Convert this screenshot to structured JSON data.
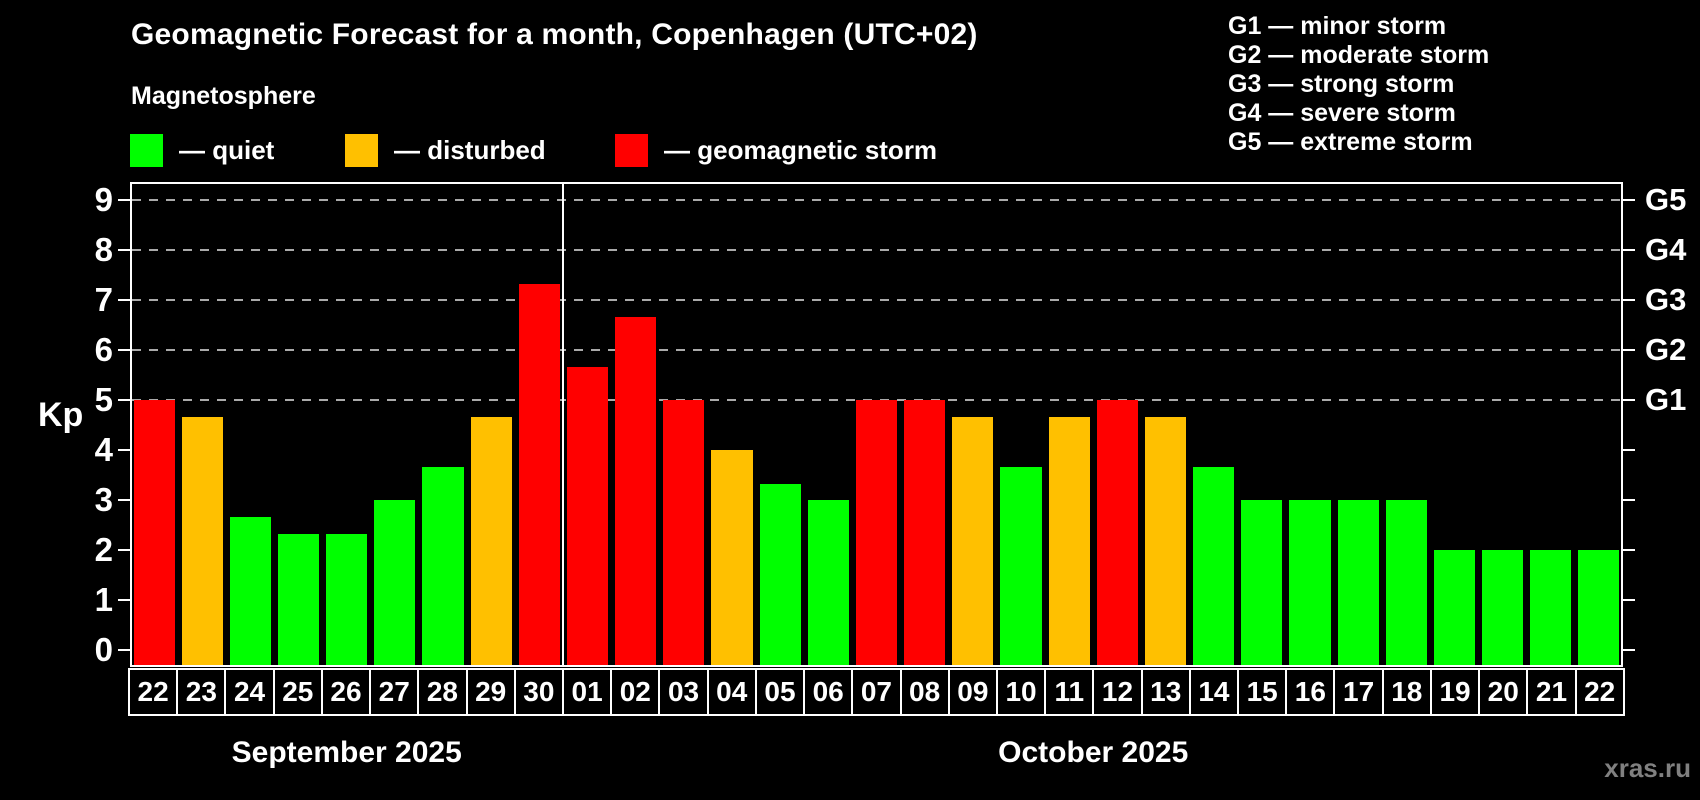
{
  "title": "Geomagnetic Forecast for a month, Copenhagen (UTC+02)",
  "subtitle": "Magnetosphere",
  "legend": {
    "quiet_label": "— quiet",
    "disturbed_label": "— disturbed",
    "storm_label": "— geomagnetic storm"
  },
  "g_scale_legend": [
    "G1 — minor storm",
    "G2 — moderate storm",
    "G3 — strong storm",
    "G4 — severe storm",
    "G5 — extreme storm"
  ],
  "watermark": "xras.ru",
  "colors": {
    "quiet": "#00ff00",
    "disturbed": "#ffc000",
    "storm": "#ff0000",
    "grid": "#aaaaaa",
    "axis": "#ffffff",
    "watermark": "#808080"
  },
  "chart_data": {
    "type": "bar",
    "ylabel": "Kp",
    "ylim": [
      0,
      9
    ],
    "yticks": [
      0,
      1,
      2,
      3,
      4,
      5,
      6,
      7,
      8,
      9
    ],
    "grid_kp": [
      5,
      6,
      7,
      8,
      9
    ],
    "right_axis": [
      {
        "kp": 5,
        "label": "G1"
      },
      {
        "kp": 6,
        "label": "G2"
      },
      {
        "kp": 7,
        "label": "G3"
      },
      {
        "kp": 8,
        "label": "G4"
      },
      {
        "kp": 9,
        "label": "G5"
      }
    ],
    "months": [
      {
        "label": "September 2025",
        "days": 9
      },
      {
        "label": "October 2025",
        "days": 22
      }
    ],
    "categories": [
      "22",
      "23",
      "24",
      "25",
      "26",
      "27",
      "28",
      "29",
      "30",
      "01",
      "02",
      "03",
      "04",
      "05",
      "06",
      "07",
      "08",
      "09",
      "10",
      "11",
      "12",
      "13",
      "14",
      "15",
      "16",
      "17",
      "18",
      "19",
      "20",
      "21",
      "22"
    ],
    "values": [
      5,
      4.67,
      2.67,
      2.33,
      2.33,
      3,
      3.67,
      4.67,
      7.33,
      5.67,
      6.67,
      5,
      4,
      3.33,
      3,
      5,
      5,
      4.67,
      3.67,
      4.67,
      5,
      4.67,
      3.67,
      3,
      3,
      3,
      3,
      2,
      2,
      2,
      2
    ],
    "statuses": [
      "storm",
      "disturbed",
      "quiet",
      "quiet",
      "quiet",
      "quiet",
      "quiet",
      "disturbed",
      "storm",
      "storm",
      "storm",
      "storm",
      "disturbed",
      "quiet",
      "quiet",
      "storm",
      "storm",
      "disturbed",
      "quiet",
      "disturbed",
      "storm",
      "disturbed",
      "quiet",
      "quiet",
      "quiet",
      "quiet",
      "quiet",
      "quiet",
      "quiet",
      "quiet",
      "quiet"
    ]
  }
}
